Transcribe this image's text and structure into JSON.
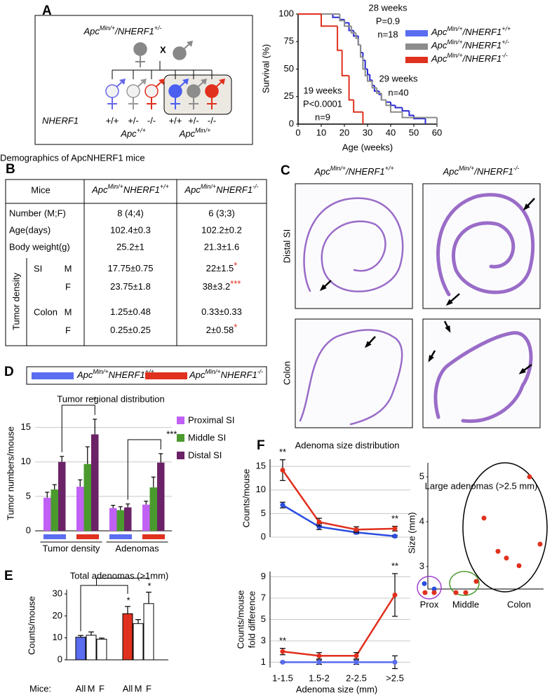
{
  "panel_labels": [
    "A",
    "B",
    "C",
    "D",
    "E",
    "F"
  ],
  "cross": {
    "parent_genotype": [
      "Apc",
      "Min/+",
      "/NHERF1",
      "+/-"
    ],
    "cross_symbol": "X",
    "row_label": "NHERF1",
    "offspring_genotypes": [
      "+/+",
      "+/-",
      "-/-",
      "+/+",
      "+/-",
      "-/-"
    ],
    "group_labels": [
      [
        "Apc",
        "+/+"
      ],
      [
        "Apc",
        "Min/+"
      ]
    ]
  },
  "table": {
    "caption": "Demographics of ApcNHERF1 mice",
    "header": [
      "Mice",
      [
        "Apc",
        "Min/+",
        "NHERF1",
        "+/+"
      ],
      [
        "Apc",
        "Min/+",
        "NHERF1",
        "-/-"
      ]
    ],
    "rows": [
      {
        "label": "Number (M;F)",
        "cells": [
          "8 (4;4)",
          "6 (3;3)"
        ]
      },
      {
        "label": "Age(days)",
        "cells": [
          "102.4±0.3",
          "102.2±0.2"
        ]
      },
      {
        "label": "Body weight(g)",
        "cells": [
          "25.2±1",
          "21.3±1.6"
        ]
      }
    ],
    "group_label": "Tumor density",
    "mark_color": "#e0301e",
    "tumor_rows": [
      {
        "site": "SI",
        "sex": "M",
        "cells": [
          {
            "text": "17.75±0.75"
          },
          {
            "text": "22±1.5",
            "mark": "*"
          }
        ]
      },
      {
        "sex": "F",
        "cells": [
          {
            "text": "23.75±1.8"
          },
          {
            "text": "38±3.2",
            "mark": "***"
          }
        ]
      },
      {
        "site": "Colon",
        "sex": "M",
        "cells": [
          {
            "text": "1.25±0.48"
          },
          {
            "text": "0.33±0.33"
          }
        ]
      },
      {
        "sex": "F",
        "cells": [
          {
            "text": "0.25±0.25"
          },
          {
            "text": "2±0.58",
            "mark": "*"
          }
        ]
      }
    ]
  },
  "histology": {
    "columns": [
      [
        "Apc",
        "Min/+",
        "/NHERF1",
        "+/+"
      ],
      [
        "Apc",
        "Min/+",
        "/NHERF1",
        "-/-"
      ]
    ],
    "rows": [
      "Distal SI",
      "Colon"
    ]
  },
  "chart_data": [
    {
      "type": "step",
      "x_label": "Age (weeks)",
      "y_label": "Survival (%)",
      "xlim": [
        0,
        60
      ],
      "xticks": [
        0,
        10,
        20,
        30,
        40,
        50,
        60
      ],
      "ylim": [
        0,
        100
      ],
      "yticks": [
        0,
        25,
        50,
        75,
        100
      ],
      "legend": "top-right",
      "series": [
        {
          "name": [
            "Apc",
            "Min/+",
            "/NHERF1",
            "+/+"
          ],
          "color": "#2b2bd0",
          "legend_color": "#5a6cf0",
          "x": [
            0,
            15,
            18,
            20,
            22,
            24,
            26,
            27,
            28,
            29,
            30,
            31,
            32,
            33,
            35,
            36,
            38,
            40,
            42,
            45,
            48,
            50,
            55
          ],
          "values": [
            100,
            97,
            95,
            92,
            85,
            80,
            72,
            65,
            58,
            50,
            45,
            40,
            35,
            30,
            27,
            22,
            20,
            17,
            15,
            12,
            8,
            5,
            0
          ]
        },
        {
          "name": [
            "Apc",
            "Min/+",
            "/NHERF1",
            "+/-"
          ],
          "color": "#8c8c8c",
          "legend_color": "#8c8c8c",
          "x": [
            0,
            18,
            20,
            23,
            25,
            26,
            27,
            28,
            29,
            30,
            32,
            34,
            36,
            38,
            40,
            45,
            60
          ],
          "values": [
            100,
            94,
            89,
            83,
            78,
            72,
            61,
            50,
            44,
            39,
            33,
            28,
            22,
            17,
            11,
            6,
            0
          ]
        },
        {
          "name": [
            "Apc",
            "Min/+",
            "/NHERF1",
            "-/-"
          ],
          "color": "#e0301e",
          "legend_color": "#e0301e",
          "x": [
            0,
            10,
            17,
            19,
            22,
            24,
            28
          ],
          "values": [
            100,
            89,
            67,
            44,
            22,
            11,
            0
          ]
        }
      ],
      "annotations": [
        {
          "lines": [
            "28 weeks",
            "P=0.9",
            "n=18"
          ],
          "color": "#8c8c8c"
        },
        {
          "lines": [
            "29 weeks",
            "n=40"
          ],
          "color": "#2b2bd0"
        },
        {
          "lines": [
            "19 weeks",
            "P<0.0001",
            "n=9"
          ],
          "color": "#e0301e"
        }
      ]
    },
    {
      "type": "grouped_bar",
      "title": "Tumor regional distribution",
      "y_label": "Tumor numbers/mouse",
      "ylim": [
        0,
        17
      ],
      "yticks": [
        0,
        5,
        10,
        15
      ],
      "grid": true,
      "legend": "right",
      "categories": [
        null,
        null,
        null,
        null
      ],
      "category_colors": [
        "#5a6cf0",
        "#e0301e",
        "#5a6cf0",
        "#e0301e"
      ],
      "group_labels": [
        "Tumor density",
        "Adenomas"
      ],
      "group_marks": [
        "*",
        "***"
      ],
      "mark_color": "#e0301e",
      "genotype_legend": [
        {
          "name": [
            "Apc",
            "Min/+",
            "NHERF1",
            "+/+"
          ],
          "color": "#5a6cf0"
        },
        {
          "name": [
            "Apc",
            "Min/+",
            "NHERF1",
            "-/-"
          ],
          "color": "#e0301e"
        }
      ],
      "series": [
        {
          "name": "Proximal SI",
          "color": "#c060f5",
          "values": [
            4.8,
            6.4,
            3.3,
            3.8
          ],
          "errors": [
            0.8,
            1.0,
            0.4,
            0.5
          ]
        },
        {
          "name": "Middle SI",
          "color": "#4a9a2e",
          "values": [
            6.0,
            9.7,
            3.0,
            6.3
          ],
          "errors": [
            0.7,
            2.5,
            0.5,
            1.5
          ]
        },
        {
          "name": "Distal SI",
          "color": "#6b2266",
          "values": [
            10.0,
            14.0,
            3.4,
            9.9
          ],
          "errors": [
            0.8,
            2.2,
            0.5,
            1.3
          ]
        }
      ]
    },
    {
      "type": "bar",
      "title": "Total adenomas (>1mm)",
      "y_label": "Counts/mouse",
      "x_prefix": "Mice:",
      "categories": [
        "All",
        "M",
        "F",
        "All",
        "M",
        "F"
      ],
      "values": [
        10.3,
        11.2,
        9.4,
        21,
        16.5,
        25.6
      ],
      "errors": [
        0.8,
        1.5,
        0.5,
        3.3,
        1.8,
        5.2
      ],
      "colors": [
        "#5a6cf0",
        "#ffffff",
        "#ffffff",
        "#e0301e",
        "#ffffff",
        "#ffffff"
      ],
      "marks": [
        null,
        null,
        null,
        "*",
        null,
        "*"
      ],
      "mark_color": "#e0301e",
      "ylim": [
        0,
        32
      ],
      "yticks": [
        0,
        10,
        20,
        30
      ]
    },
    {
      "type": "line",
      "title": "Adenoma size distribution",
      "y_label": [
        "Counts/mouse"
      ],
      "categories": [
        null,
        null,
        null,
        null
      ],
      "ylim": [
        0,
        16.5
      ],
      "yticks": [
        0,
        5,
        10,
        15
      ],
      "grid": true,
      "mark_color": "#e0301e",
      "series": [
        {
          "color": "#2b4de0",
          "values": [
            6.8,
            2.2,
            1.0,
            0.2
          ],
          "errors": [
            0.6,
            0.6,
            0.3,
            0.2
          ]
        },
        {
          "color": "#e0301e",
          "values": [
            14.2,
            3.2,
            1.6,
            1.8
          ],
          "errors": [
            2.2,
            0.8,
            0.6,
            0.5
          ],
          "marks": [
            "**",
            null,
            null,
            "**"
          ]
        }
      ]
    },
    {
      "type": "line",
      "y_label": [
        "Counts/mouse",
        "fold difference"
      ],
      "x_label": "Adenoma size (mm)",
      "categories": [
        "1-1.5",
        "1.5-2",
        "2-2.5",
        ">2.5"
      ],
      "ylim": [
        0.5,
        9.5
      ],
      "yticks": [
        1,
        3,
        5,
        7,
        9
      ],
      "grid": true,
      "mark_color": "#e0301e",
      "series": [
        {
          "color": "#5a6cf0",
          "values": [
            1,
            1,
            1,
            1
          ],
          "errors": [
            0,
            0.2,
            0.2,
            0.6
          ]
        },
        {
          "color": "#e0301e",
          "values": [
            2.0,
            1.6,
            1.6,
            7.3
          ],
          "errors": [
            0.3,
            0.3,
            0.3,
            2.0
          ],
          "marks": [
            "**",
            null,
            null,
            "**"
          ]
        }
      ]
    },
    {
      "type": "strip",
      "title": "Large adenomas (>2.5 mm)",
      "y_label": "Size (mm)",
      "ylim": [
        2.5,
        5.5
      ],
      "yticks": [
        3,
        4,
        5
      ],
      "groups": [
        {
          "name": "Prox",
          "color": "#a040d0",
          "values": [
            2.62,
            2.5,
            2.42,
            2.42
          ],
          "colors": [
            "#2b4de0",
            "#2b4de0",
            "#e0301e",
            "#e0301e"
          ]
        },
        {
          "name": "Middle",
          "color": "#4a9a2e",
          "values": [
            2.42,
            2.42,
            2.67
          ],
          "colors": [
            "#e0301e",
            "#e0301e",
            "#e0301e"
          ]
        },
        {
          "name": "Colon",
          "color": "#000000",
          "values": [
            4.08,
            5.0,
            3.5,
            3.34,
            3.19,
            3.02
          ],
          "colors": [
            "#e0301e",
            "#e0301e",
            "#e0301e",
            "#e0301e",
            "#e0301e",
            "#e0301e"
          ]
        }
      ]
    }
  ]
}
